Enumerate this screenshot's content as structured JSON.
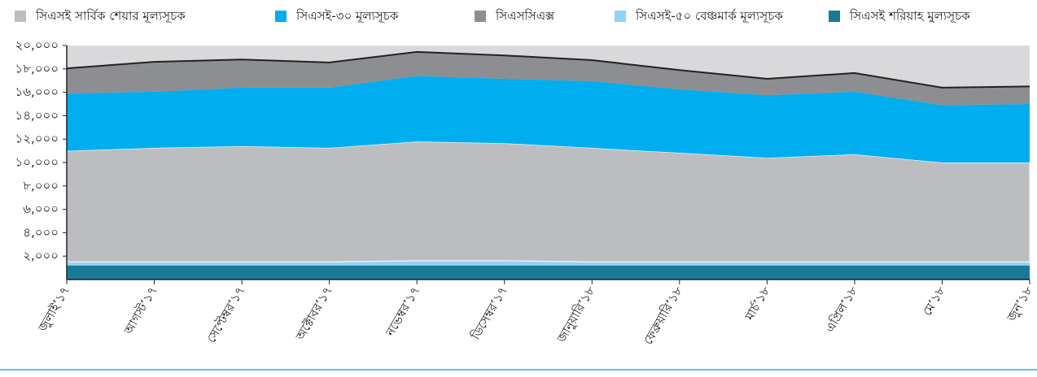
{
  "chart_data": {
    "type": "stacked_area",
    "categories": [
      "জুলাই’১৭",
      "আগস্ট’১৭",
      "সেপ্টেম্বর’১৭",
      "অক্টোবর’১৭",
      "নভেম্বর’১৭",
      "ডিসেম্বর’১৭",
      "জানুয়ারি’১৮",
      "ফেব্রুয়ারি’১৮",
      "মার্চ’১৮",
      "এপ্রিল’১৮",
      "মে’১৮",
      "জুন’১৮"
    ],
    "series": [
      {
        "name": "সিএসই সার্বিক শেয়ার মূল্যসূচক",
        "color": "#bcbdc0",
        "values": [
          9500,
          9750,
          9900,
          9750,
          10200,
          10050,
          9750,
          9330,
          8900,
          9200,
          8500,
          8500
        ]
      },
      {
        "name": "সিএসই-৩০ মূল্যসূচক",
        "color": "#00aeef",
        "values": [
          4900,
          4800,
          5000,
          5150,
          5600,
          5500,
          5700,
          5420,
          5350,
          5350,
          4900,
          5000
        ]
      },
      {
        "name": "সিএসসিএক্স",
        "color": "#8d8e91",
        "values": [
          2150,
          2550,
          2400,
          2150,
          2050,
          2000,
          1800,
          1650,
          1400,
          1600,
          1500,
          1500
        ]
      },
      {
        "name": "সিএসই-৫০ বেঞ্চমার্ক মূল্যসূচক",
        "color": "#8fd3f5",
        "values": [
          300,
          300,
          300,
          300,
          400,
          400,
          300,
          300,
          300,
          300,
          300,
          300
        ]
      },
      {
        "name": "সিএসই  শরিয়াহ মুল্যসূচক",
        "color": "#1a7a96",
        "values": [
          1200,
          1200,
          1200,
          1200,
          1200,
          1200,
          1200,
          1200,
          1200,
          1200,
          1200,
          1200
        ]
      }
    ],
    "ylim": [
      0,
      20000
    ],
    "yticks": [
      {
        "value": 2000,
        "label": "২,০০০"
      },
      {
        "value": 4000,
        "label": "৪,০০০"
      },
      {
        "value": 6000,
        "label": "৬,০০০"
      },
      {
        "value": 8000,
        "label": "৮,০০০"
      },
      {
        "value": 10000,
        "label": "১০,০০০"
      },
      {
        "value": 12000,
        "label": "১২,০০০"
      },
      {
        "value": 14000,
        "label": "১৪,০০০"
      },
      {
        "value": 16000,
        "label": "১৬,০০০"
      },
      {
        "value": 18000,
        "label": "১৮,০০০"
      },
      {
        "value": 20000,
        "label": "২০,০০০"
      }
    ]
  }
}
